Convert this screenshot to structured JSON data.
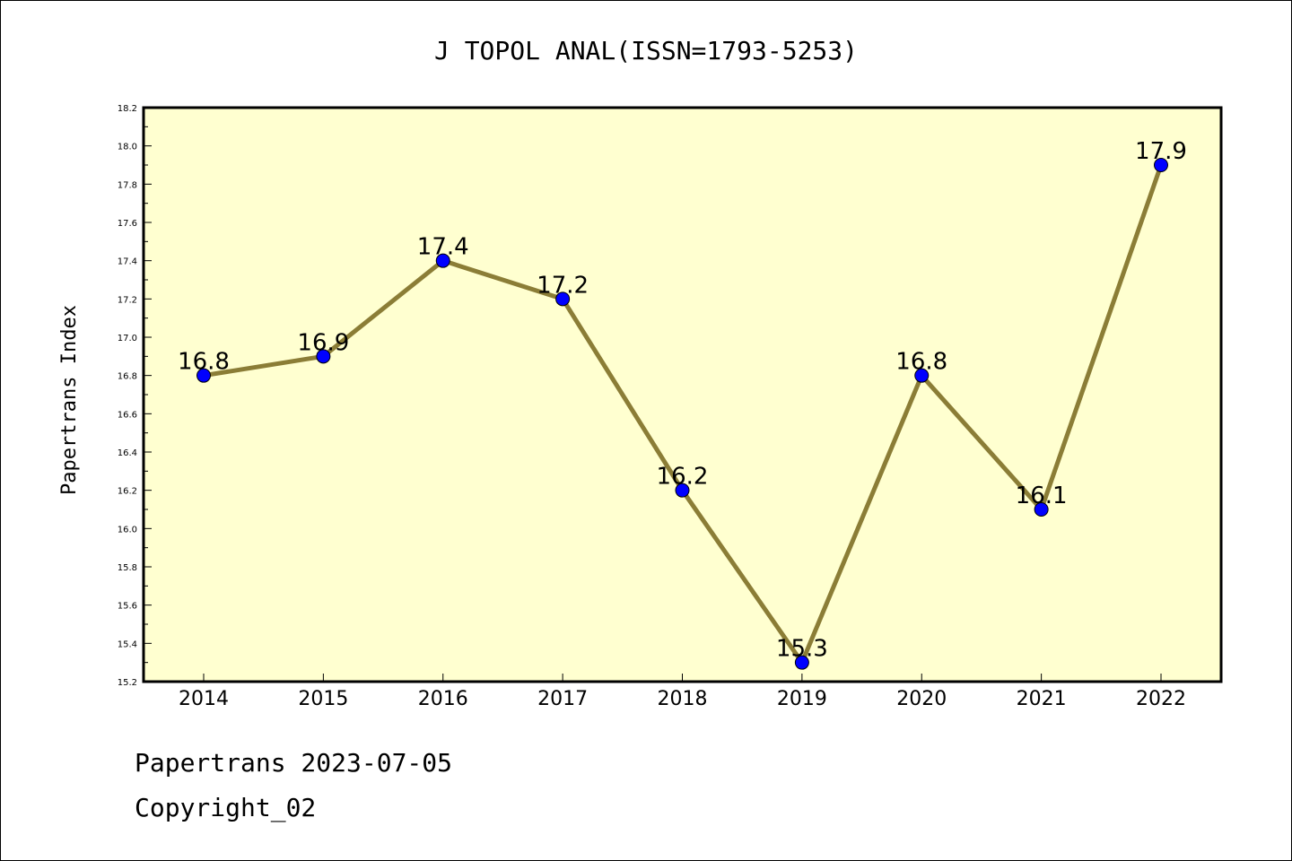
{
  "chart_data": {
    "type": "line",
    "title": "J TOPOL ANAL(ISSN=1793-5253)",
    "xlabel": "",
    "ylabel": "Papertrans Index",
    "x": [
      "2014",
      "2015",
      "2016",
      "2017",
      "2018",
      "2019",
      "2020",
      "2021",
      "2022"
    ],
    "series": [
      {
        "values": [
          16.8,
          16.9,
          17.4,
          17.2,
          16.2,
          15.3,
          16.8,
          16.1,
          17.9
        ],
        "data_labels": [
          "16.8",
          "16.9",
          "17.4",
          "17.2",
          "16.2",
          "15.3",
          "16.8",
          "16.1",
          "17.9"
        ]
      }
    ],
    "ylim": [
      15.2,
      18.2
    ],
    "yticks": [
      "15.2",
      "15.4",
      "15.6",
      "15.8",
      "16.0",
      "16.2",
      "16.4",
      "16.6",
      "16.8",
      "17.0",
      "17.2",
      "17.4",
      "17.6",
      "17.8",
      "18.0",
      "18.2"
    ],
    "grid": false,
    "colors": {
      "plot_background": "#ffffd0",
      "line": "#8b7d36",
      "marker": "#0000ff"
    }
  },
  "footer": {
    "line1": "Papertrans 2023-07-05",
    "line2": "Copyright_02"
  }
}
